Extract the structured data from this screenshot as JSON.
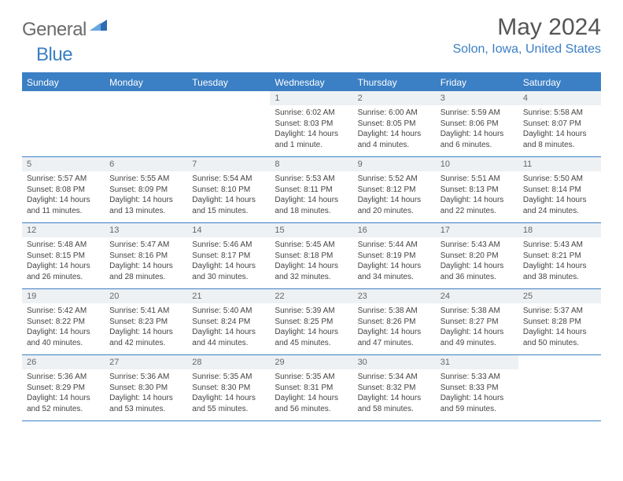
{
  "brand": {
    "part1": "General",
    "part2": "Blue",
    "tri_color": "#2e6db5"
  },
  "title": "May 2024",
  "location": "Solon, Iowa, United States",
  "colors": {
    "accent": "#3b7fc4",
    "daynum_bg": "#eef1f4",
    "text": "#444444",
    "title_text": "#555555"
  },
  "days_of_week": [
    "Sunday",
    "Monday",
    "Tuesday",
    "Wednesday",
    "Thursday",
    "Friday",
    "Saturday"
  ],
  "weeks": [
    [
      {
        "n": "",
        "sr": "",
        "ss": "",
        "dl": ""
      },
      {
        "n": "",
        "sr": "",
        "ss": "",
        "dl": ""
      },
      {
        "n": "",
        "sr": "",
        "ss": "",
        "dl": ""
      },
      {
        "n": "1",
        "sr": "6:02 AM",
        "ss": "8:03 PM",
        "dl": "14 hours and 1 minute."
      },
      {
        "n": "2",
        "sr": "6:00 AM",
        "ss": "8:05 PM",
        "dl": "14 hours and 4 minutes."
      },
      {
        "n": "3",
        "sr": "5:59 AM",
        "ss": "8:06 PM",
        "dl": "14 hours and 6 minutes."
      },
      {
        "n": "4",
        "sr": "5:58 AM",
        "ss": "8:07 PM",
        "dl": "14 hours and 8 minutes."
      }
    ],
    [
      {
        "n": "5",
        "sr": "5:57 AM",
        "ss": "8:08 PM",
        "dl": "14 hours and 11 minutes."
      },
      {
        "n": "6",
        "sr": "5:55 AM",
        "ss": "8:09 PM",
        "dl": "14 hours and 13 minutes."
      },
      {
        "n": "7",
        "sr": "5:54 AM",
        "ss": "8:10 PM",
        "dl": "14 hours and 15 minutes."
      },
      {
        "n": "8",
        "sr": "5:53 AM",
        "ss": "8:11 PM",
        "dl": "14 hours and 18 minutes."
      },
      {
        "n": "9",
        "sr": "5:52 AM",
        "ss": "8:12 PM",
        "dl": "14 hours and 20 minutes."
      },
      {
        "n": "10",
        "sr": "5:51 AM",
        "ss": "8:13 PM",
        "dl": "14 hours and 22 minutes."
      },
      {
        "n": "11",
        "sr": "5:50 AM",
        "ss": "8:14 PM",
        "dl": "14 hours and 24 minutes."
      }
    ],
    [
      {
        "n": "12",
        "sr": "5:48 AM",
        "ss": "8:15 PM",
        "dl": "14 hours and 26 minutes."
      },
      {
        "n": "13",
        "sr": "5:47 AM",
        "ss": "8:16 PM",
        "dl": "14 hours and 28 minutes."
      },
      {
        "n": "14",
        "sr": "5:46 AM",
        "ss": "8:17 PM",
        "dl": "14 hours and 30 minutes."
      },
      {
        "n": "15",
        "sr": "5:45 AM",
        "ss": "8:18 PM",
        "dl": "14 hours and 32 minutes."
      },
      {
        "n": "16",
        "sr": "5:44 AM",
        "ss": "8:19 PM",
        "dl": "14 hours and 34 minutes."
      },
      {
        "n": "17",
        "sr": "5:43 AM",
        "ss": "8:20 PM",
        "dl": "14 hours and 36 minutes."
      },
      {
        "n": "18",
        "sr": "5:43 AM",
        "ss": "8:21 PM",
        "dl": "14 hours and 38 minutes."
      }
    ],
    [
      {
        "n": "19",
        "sr": "5:42 AM",
        "ss": "8:22 PM",
        "dl": "14 hours and 40 minutes."
      },
      {
        "n": "20",
        "sr": "5:41 AM",
        "ss": "8:23 PM",
        "dl": "14 hours and 42 minutes."
      },
      {
        "n": "21",
        "sr": "5:40 AM",
        "ss": "8:24 PM",
        "dl": "14 hours and 44 minutes."
      },
      {
        "n": "22",
        "sr": "5:39 AM",
        "ss": "8:25 PM",
        "dl": "14 hours and 45 minutes."
      },
      {
        "n": "23",
        "sr": "5:38 AM",
        "ss": "8:26 PM",
        "dl": "14 hours and 47 minutes."
      },
      {
        "n": "24",
        "sr": "5:38 AM",
        "ss": "8:27 PM",
        "dl": "14 hours and 49 minutes."
      },
      {
        "n": "25",
        "sr": "5:37 AM",
        "ss": "8:28 PM",
        "dl": "14 hours and 50 minutes."
      }
    ],
    [
      {
        "n": "26",
        "sr": "5:36 AM",
        "ss": "8:29 PM",
        "dl": "14 hours and 52 minutes."
      },
      {
        "n": "27",
        "sr": "5:36 AM",
        "ss": "8:30 PM",
        "dl": "14 hours and 53 minutes."
      },
      {
        "n": "28",
        "sr": "5:35 AM",
        "ss": "8:30 PM",
        "dl": "14 hours and 55 minutes."
      },
      {
        "n": "29",
        "sr": "5:35 AM",
        "ss": "8:31 PM",
        "dl": "14 hours and 56 minutes."
      },
      {
        "n": "30",
        "sr": "5:34 AM",
        "ss": "8:32 PM",
        "dl": "14 hours and 58 minutes."
      },
      {
        "n": "31",
        "sr": "5:33 AM",
        "ss": "8:33 PM",
        "dl": "14 hours and 59 minutes."
      },
      {
        "n": "",
        "sr": "",
        "ss": "",
        "dl": ""
      }
    ]
  ],
  "labels": {
    "sunrise": "Sunrise:",
    "sunset": "Sunset:",
    "daylight": "Daylight:"
  }
}
